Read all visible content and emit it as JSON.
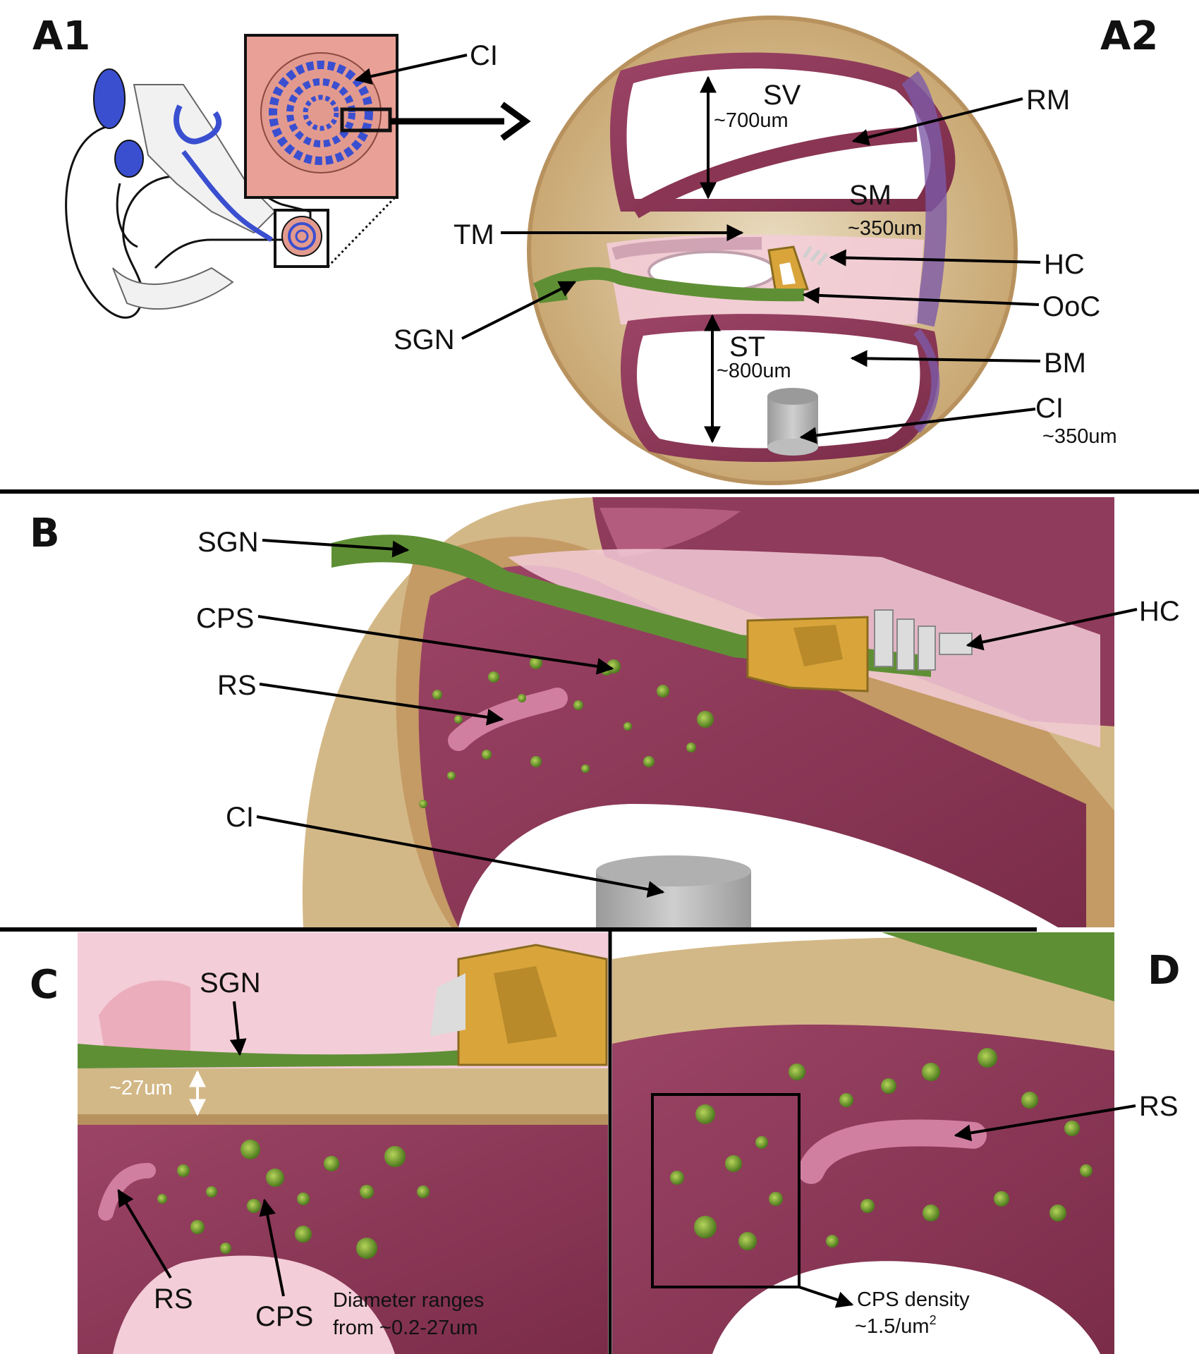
{
  "panels": {
    "a1": {
      "letter": "A1",
      "ci": "CI"
    },
    "a2": {
      "letter": "A2",
      "sv": "SV",
      "sv_size": "~700um",
      "sm": "SM",
      "sm_size": "~350um",
      "st": "ST",
      "st_size": "~800um",
      "rm": "RM",
      "tm": "TM",
      "hc": "HC",
      "ooc": "OoC",
      "bm": "BM",
      "sgn": "SGN",
      "ci": "CI",
      "ci_size": "~350um"
    },
    "b": {
      "letter": "B",
      "sgn": "SGN",
      "cps": "CPS",
      "rs": "RS",
      "ci": "CI",
      "hc": "HC"
    },
    "c": {
      "letter": "C",
      "sgn": "SGN",
      "thickness": "~27um",
      "rs": "RS",
      "cps": "CPS",
      "diameter_line1": "Diameter ranges",
      "diameter_line2": "from  ~0.2-27um"
    },
    "d": {
      "letter": "D",
      "rs": "RS",
      "density_line1": "CPS density",
      "density_line2": "~1.5/um",
      "density_sup": "2"
    }
  },
  "colors": {
    "bone": "#d9c29a",
    "bone_dark": "#b8925e",
    "tissue": "#8a3553",
    "tissue_light": "#c76f8f",
    "pink_bg": "#f3cdd8",
    "nerve": "#5f8f35",
    "organ_corti": "#d9a53b",
    "membrane_purple": "#7d5aa8",
    "implant": "#bdbdbd",
    "ear_blue": "#3a4fd0"
  }
}
